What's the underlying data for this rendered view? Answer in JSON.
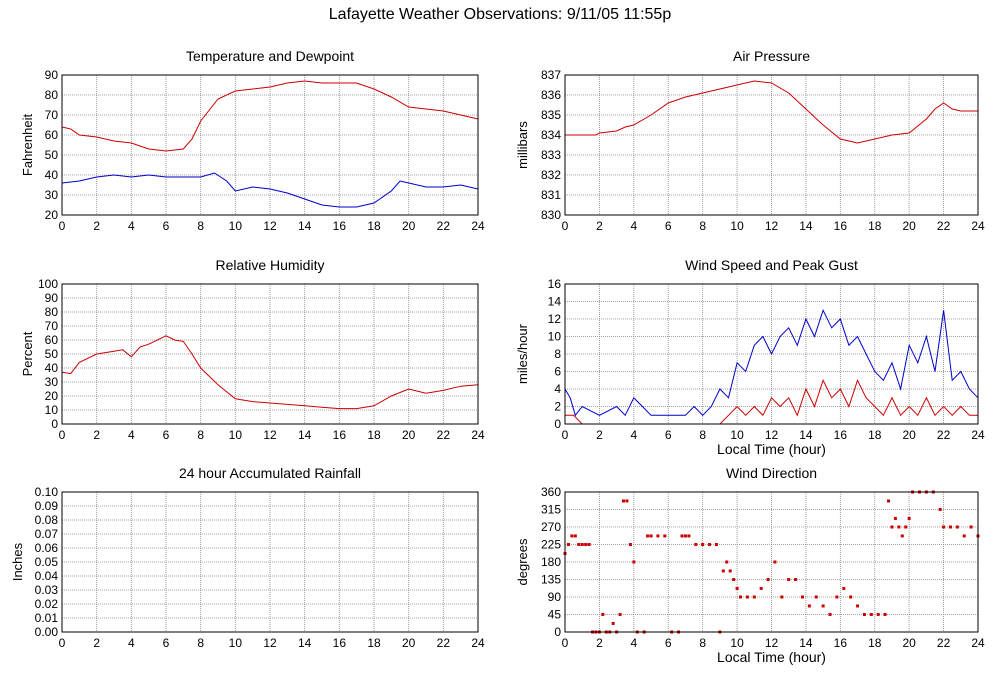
{
  "page": {
    "title": "Lafayette Weather Observations: 9/11/05 11:55p"
  },
  "colors": {
    "red": "#cc0000",
    "blue": "#0000cc",
    "grid": "#888888",
    "axes": "#000000"
  },
  "chart_data": [
    {
      "id": "temp",
      "type": "line",
      "title": "Temperature and Dewpoint",
      "xlabel": "",
      "ylabel": "Fahrenheit",
      "xlim": [
        0,
        24
      ],
      "ylim": [
        20,
        90
      ],
      "xticks": [
        0,
        2,
        4,
        6,
        8,
        10,
        12,
        14,
        16,
        18,
        20,
        22,
        24
      ],
      "yticks": [
        20,
        30,
        40,
        50,
        60,
        70,
        80,
        90
      ],
      "grid": true,
      "series": [
        {
          "color": "#cc0000",
          "x": [
            0,
            0.5,
            1,
            2,
            3,
            4,
            5,
            6,
            7,
            7.5,
            8,
            9,
            10,
            11,
            12,
            13,
            14,
            15,
            16,
            17,
            18,
            19,
            20,
            21,
            22,
            23,
            24
          ],
          "y": [
            64,
            63,
            60,
            59,
            57,
            56,
            53,
            52,
            53,
            58,
            67,
            78,
            82,
            83,
            84,
            86,
            87,
            86,
            86,
            86,
            83,
            79,
            74,
            73,
            72,
            70,
            68
          ]
        },
        {
          "color": "#0000cc",
          "x": [
            0,
            1,
            2,
            3,
            4,
            5,
            6,
            7,
            8,
            8.8,
            9.5,
            10,
            11,
            12,
            13,
            14,
            15,
            16,
            17,
            18,
            19,
            19.5,
            20,
            21,
            22,
            23,
            24
          ],
          "y": [
            36,
            37,
            39,
            40,
            39,
            40,
            39,
            39,
            39,
            41,
            37,
            32,
            34,
            33,
            31,
            28,
            25,
            24,
            24,
            26,
            32,
            37,
            36,
            34,
            34,
            35,
            33
          ]
        }
      ]
    },
    {
      "id": "pressure",
      "type": "line",
      "title": "Air Pressure",
      "xlabel": "",
      "ylabel": "millibars",
      "xlim": [
        0,
        24
      ],
      "ylim": [
        830,
        837
      ],
      "xticks": [
        0,
        2,
        4,
        6,
        8,
        10,
        12,
        14,
        16,
        18,
        20,
        22,
        24
      ],
      "yticks": [
        830,
        831,
        832,
        833,
        834,
        835,
        836,
        837
      ],
      "grid": true,
      "series": [
        {
          "color": "#cc0000",
          "x": [
            0,
            1.8,
            2,
            3,
            3.5,
            4,
            5,
            6,
            7,
            8,
            9,
            10,
            11,
            12,
            13,
            14,
            15,
            16,
            17,
            18,
            19,
            20,
            21,
            21.5,
            22,
            22.5,
            23,
            24
          ],
          "y": [
            834,
            834,
            834.1,
            834.2,
            834.4,
            834.5,
            835,
            835.6,
            835.9,
            836.1,
            836.3,
            836.5,
            836.7,
            836.6,
            836.1,
            835.3,
            834.5,
            833.8,
            833.6,
            833.8,
            834,
            834.1,
            834.8,
            835.3,
            835.6,
            835.3,
            835.2,
            835.2
          ]
        }
      ]
    },
    {
      "id": "humidity",
      "type": "line",
      "title": "Relative Humidity",
      "xlabel": "",
      "ylabel": "Percent",
      "xlim": [
        0,
        24
      ],
      "ylim": [
        0,
        100
      ],
      "xticks": [
        0,
        2,
        4,
        6,
        8,
        10,
        12,
        14,
        16,
        18,
        20,
        22,
        24
      ],
      "yticks": [
        0,
        10,
        20,
        30,
        40,
        50,
        60,
        70,
        80,
        90,
        100
      ],
      "grid": true,
      "series": [
        {
          "color": "#cc0000",
          "x": [
            0,
            0.5,
            1,
            2,
            3,
            3.5,
            4,
            4.5,
            5,
            6,
            6.5,
            7,
            7.5,
            8,
            9,
            10,
            11,
            12,
            13,
            14,
            15,
            16,
            17,
            18,
            19,
            20,
            21,
            22,
            23,
            24
          ],
          "y": [
            37,
            36,
            44,
            50,
            52,
            53,
            48,
            55,
            57,
            63,
            60,
            59,
            50,
            40,
            28,
            18,
            16,
            15,
            14,
            13,
            12,
            11,
            11,
            13,
            20,
            25,
            22,
            24,
            27,
            28
          ]
        }
      ]
    },
    {
      "id": "wind",
      "type": "line",
      "title": "Wind Speed and Peak Gust",
      "xlabel": "Local Time (hour)",
      "ylabel": "miles/hour",
      "xlim": [
        0,
        24
      ],
      "ylim": [
        0,
        16
      ],
      "xticks": [
        0,
        2,
        4,
        6,
        8,
        10,
        12,
        14,
        16,
        18,
        20,
        22,
        24
      ],
      "yticks": [
        0,
        2,
        4,
        6,
        8,
        10,
        12,
        14,
        16
      ],
      "grid": true,
      "series": [
        {
          "color": "#0000cc",
          "x": [
            0,
            0.3,
            0.6,
            1,
            2,
            3,
            3.5,
            4,
            4.5,
            5,
            6,
            7,
            7.5,
            8,
            8.5,
            9,
            9.5,
            10,
            10.5,
            11,
            11.5,
            12,
            12.5,
            13,
            13.5,
            14,
            14.5,
            15,
            15.5,
            16,
            16.5,
            17,
            17.5,
            18,
            18.5,
            19,
            19.5,
            20,
            20.5,
            21,
            21.5,
            22,
            22.5,
            23,
            23.5,
            24
          ],
          "y": [
            4,
            3,
            1,
            2,
            1,
            2,
            1,
            3,
            2,
            1,
            1,
            1,
            2,
            1,
            2,
            4,
            3,
            7,
            6,
            9,
            10,
            8,
            10,
            11,
            9,
            12,
            10,
            13,
            11,
            12,
            9,
            10,
            8,
            6,
            5,
            7,
            4,
            9,
            7,
            10,
            6,
            13,
            5,
            6,
            4,
            3
          ]
        },
        {
          "color": "#cc0000",
          "x": [
            0,
            0.5,
            1,
            2,
            3,
            4,
            5,
            6,
            7,
            8,
            9,
            9.5,
            10,
            10.5,
            11,
            11.5,
            12,
            12.5,
            13,
            13.5,
            14,
            14.5,
            15,
            15.5,
            16,
            16.5,
            17,
            17.5,
            18,
            18.5,
            19,
            19.5,
            20,
            20.5,
            21,
            21.5,
            22,
            22.5,
            23,
            23.5,
            24
          ],
          "y": [
            1,
            1,
            0,
            0,
            0,
            0,
            0,
            0,
            0,
            0,
            0,
            1,
            2,
            1,
            2,
            1,
            3,
            2,
            3,
            1,
            4,
            2,
            5,
            3,
            4,
            2,
            5,
            3,
            2,
            1,
            3,
            1,
            2,
            1,
            3,
            1,
            2,
            1,
            2,
            1,
            1
          ]
        }
      ]
    },
    {
      "id": "rain",
      "type": "line",
      "title": "24 hour Accumulated Rainfall",
      "xlabel": "",
      "ylabel": "Inches",
      "xlim": [
        0,
        24
      ],
      "ylim": [
        0,
        0.1
      ],
      "xticks": [
        0,
        2,
        4,
        6,
        8,
        10,
        12,
        14,
        16,
        18,
        20,
        22,
        24
      ],
      "yticks": [
        "0.00",
        "0.01",
        "0.02",
        "0.03",
        "0.04",
        "0.05",
        "0.06",
        "0.07",
        "0.08",
        "0.09",
        "0.10"
      ],
      "grid": true,
      "series": [
        {
          "color": "#cc0000",
          "x": [
            0,
            24
          ],
          "y": [
            0,
            0
          ]
        }
      ]
    },
    {
      "id": "direction",
      "type": "scatter",
      "title": "Wind Direction",
      "xlabel": "Local Time (hour)",
      "ylabel": "degrees",
      "xlim": [
        0,
        24
      ],
      "ylim": [
        0,
        360
      ],
      "xticks": [
        0,
        2,
        4,
        6,
        8,
        10,
        12,
        14,
        16,
        18,
        20,
        22,
        24
      ],
      "yticks": [
        0,
        45,
        90,
        135,
        180,
        225,
        270,
        315,
        360
      ],
      "grid": true,
      "series": [
        {
          "color": "#cc0000",
          "x": [
            0,
            0.2,
            0.4,
            0.6,
            0.8,
            1.0,
            1.2,
            1.4,
            1.6,
            1.8,
            2.0,
            2.2,
            2.4,
            2.6,
            2.8,
            3.0,
            3.2,
            3.4,
            3.6,
            3.8,
            4.0,
            4.2,
            4.6,
            4.8,
            5.0,
            5.4,
            5.8,
            6.2,
            6.6,
            6.8,
            7.0,
            7.2,
            7.6,
            8.0,
            8.4,
            8.8,
            9.0,
            9.2,
            9.4,
            9.6,
            9.8,
            10.0,
            10.2,
            10.6,
            11.0,
            11.4,
            11.8,
            12.2,
            12.6,
            13.0,
            13.4,
            13.8,
            14.2,
            14.6,
            15.0,
            15.4,
            15.8,
            16.2,
            16.6,
            17.0,
            17.4,
            17.8,
            18.2,
            18.6,
            18.8,
            19.0,
            19.2,
            19.4,
            19.6,
            19.8,
            20.0,
            20.2,
            20.6,
            21.0,
            21.4,
            21.8,
            22.0,
            22.4,
            22.8,
            23.2,
            23.6,
            24.0
          ],
          "y": [
            202,
            225,
            247,
            247,
            225,
            225,
            225,
            225,
            0,
            0,
            0,
            45,
            0,
            0,
            22,
            0,
            45,
            337,
            337,
            225,
            180,
            0,
            0,
            247,
            247,
            247,
            247,
            0,
            0,
            247,
            247,
            247,
            225,
            225,
            225,
            225,
            0,
            157,
            180,
            157,
            135,
            112,
            90,
            90,
            90,
            112,
            135,
            180,
            90,
            135,
            135,
            90,
            67,
            90,
            67,
            45,
            90,
            112,
            90,
            67,
            45,
            45,
            45,
            45,
            337,
            270,
            292,
            270,
            247,
            270,
            292,
            360,
            360,
            360,
            360,
            315,
            270,
            270,
            270,
            247,
            270,
            247
          ]
        }
      ]
    }
  ]
}
